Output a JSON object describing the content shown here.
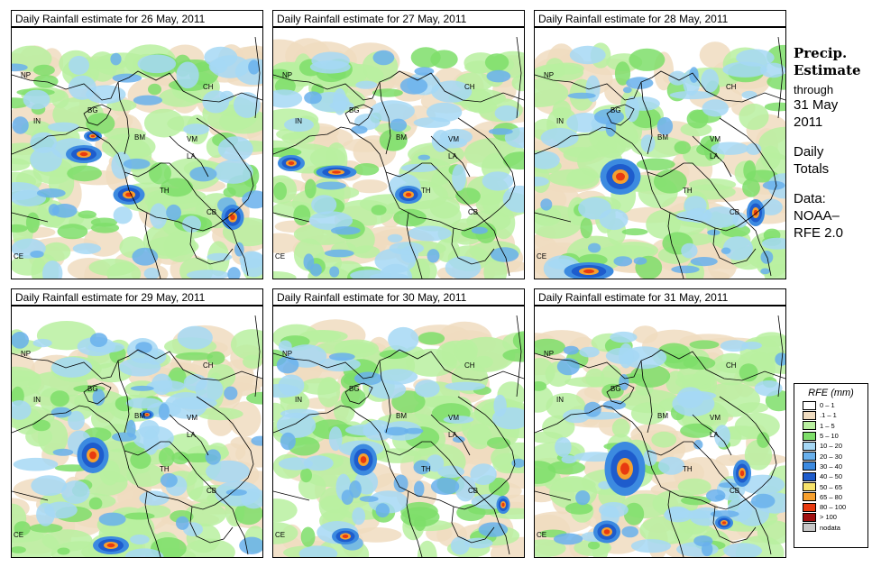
{
  "panels": [
    {
      "title": "Daily Rainfall estimate for  26 May, 2011"
    },
    {
      "title": "Daily Rainfall estimate for  27 May, 2011"
    },
    {
      "title": "Daily Rainfall estimate for  28 May, 2011"
    },
    {
      "title": "Daily Rainfall estimate for  29 May, 2011"
    },
    {
      "title": "Daily Rainfall estimate for  30 May, 2011"
    },
    {
      "title": "Daily Rainfall estimate for  31 May, 2011"
    }
  ],
  "map_labels": [
    "NP",
    "CH",
    "IN",
    "BG",
    "BM",
    "VM",
    "LA",
    "TH",
    "CB",
    "CE"
  ],
  "sidebar": {
    "title_line1": "Precip.",
    "title_line2": "Estimate",
    "through": "through",
    "date_line1": "31 May",
    "date_line2": "2011",
    "daily_line1": "Daily",
    "daily_line2": "Totals",
    "data_line1": "Data:",
    "data_line2": "NOAA–",
    "data_line3": "RFE 2.0"
  },
  "legend": {
    "title": "RFE (mm)",
    "items": [
      {
        "label": "0 – 1",
        "color": "#ffffff"
      },
      {
        "label": ".1 – 1",
        "color": "#f0dcc0"
      },
      {
        "label": "1 – 5",
        "color": "#b9f0a0"
      },
      {
        "label": "5 – 10",
        "color": "#7ede6a"
      },
      {
        "label": "10 – 20",
        "color": "#a6d8f5"
      },
      {
        "label": "20 – 30",
        "color": "#69b0ec"
      },
      {
        "label": "30 – 40",
        "color": "#3c8ae0"
      },
      {
        "label": "40 – 50",
        "color": "#1e5ccc"
      },
      {
        "label": "50 – 65",
        "color": "#f7e36b"
      },
      {
        "label": "65 – 80",
        "color": "#f7a02e"
      },
      {
        "label": "80 – 100",
        "color": "#e83a10"
      },
      {
        "label": "> 100",
        "color": "#a01010"
      },
      {
        "label": "nodata",
        "color": "#c8c8c8"
      }
    ]
  }
}
